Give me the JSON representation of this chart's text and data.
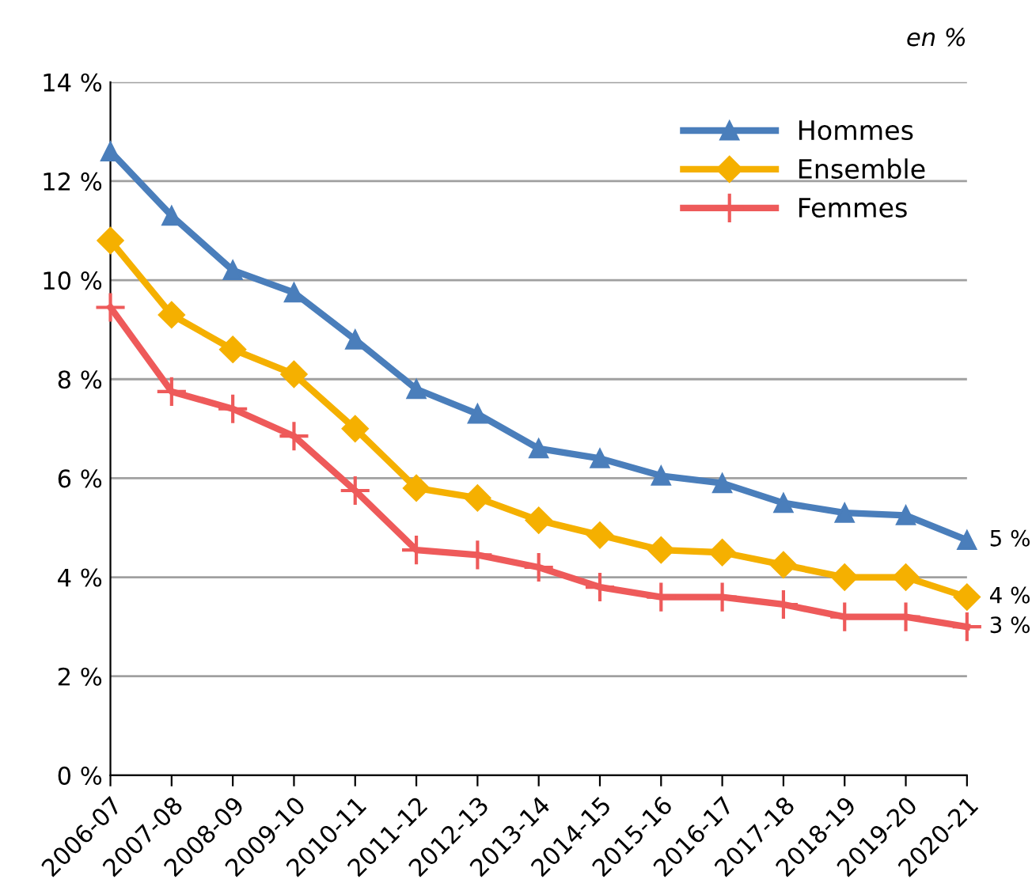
{
  "chart_data": {
    "type": "line",
    "categories": [
      "2006-07",
      "2007-08",
      "2008-09",
      "2009-10",
      "2010-11",
      "2011-12",
      "2012-13",
      "2013-14",
      "2014-15",
      "2015-16",
      "2016-17",
      "2017-18",
      "2018-19",
      "2019-20",
      "2020-21"
    ],
    "series": [
      {
        "name": "Hommes",
        "color": "#4a7ebb",
        "marker": "triangle",
        "values": [
          12.6,
          11.3,
          10.2,
          9.75,
          8.8,
          7.8,
          7.3,
          6.6,
          6.4,
          6.05,
          5.9,
          5.5,
          5.3,
          5.25,
          4.75
        ],
        "value_labels": [
          null,
          null,
          null,
          null,
          null,
          null,
          null,
          null,
          null,
          null,
          null,
          null,
          null,
          null,
          "5 %"
        ]
      },
      {
        "name": "Ensemble",
        "color": "#f5b000",
        "marker": "diamond",
        "values": [
          10.8,
          9.3,
          8.6,
          8.1,
          7.0,
          5.8,
          5.6,
          5.15,
          4.85,
          4.55,
          4.5,
          4.25,
          4.0,
          4.0,
          3.6
        ],
        "value_labels": [
          null,
          null,
          null,
          null,
          null,
          null,
          null,
          null,
          null,
          null,
          null,
          null,
          null,
          null,
          "4 %"
        ]
      },
      {
        "name": "Femmes",
        "color": "#ee5a5a",
        "marker": "cross",
        "values": [
          9.45,
          7.75,
          7.4,
          6.85,
          5.75,
          4.55,
          4.45,
          4.2,
          3.8,
          3.6,
          3.6,
          3.45,
          3.2,
          3.2,
          3.0
        ],
        "value_labels": [
          null,
          null,
          null,
          null,
          null,
          null,
          null,
          null,
          null,
          null,
          null,
          null,
          null,
          null,
          "3 %"
        ]
      }
    ],
    "ylim": [
      0,
      14
    ],
    "yticks": [
      {
        "value": 0,
        "label": "0 %"
      },
      {
        "value": 2,
        "label": "2 %"
      },
      {
        "value": 4,
        "label": "4 %"
      },
      {
        "value": 6,
        "label": "6 %"
      },
      {
        "value": 8,
        "label": "8 %"
      },
      {
        "value": 10,
        "label": "10 %"
      },
      {
        "value": 12,
        "label": "12 %"
      },
      {
        "value": 14,
        "label": "14 %"
      }
    ],
    "grid": "y",
    "legend": "top right",
    "line_style": "solid",
    "annotations": [
      "en %"
    ]
  }
}
